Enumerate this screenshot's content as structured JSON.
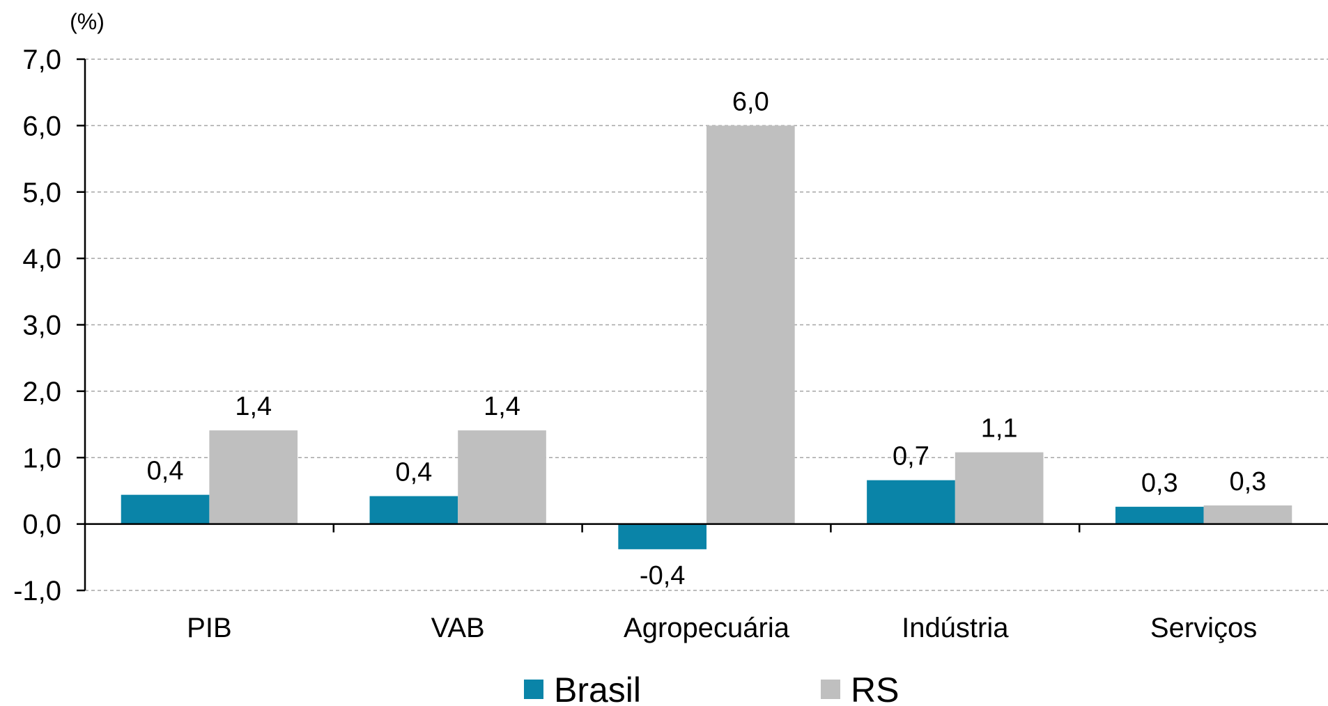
{
  "chart_data": {
    "type": "bar",
    "unit_label": "(%)",
    "categories": [
      "PIB",
      "VAB",
      "Agropecuária",
      "Indústria",
      "Serviços"
    ],
    "series": [
      {
        "name": "Brasil",
        "color": "#0a84a8",
        "values": [
          0.4,
          0.4,
          -0.4,
          0.7,
          0.3
        ],
        "labels": [
          "0,4",
          "0,4",
          "-0,4",
          "0,7",
          "0,3"
        ],
        "bar_heights": [
          0.44,
          0.42,
          -0.38,
          0.66,
          0.26
        ]
      },
      {
        "name": "RS",
        "color": "#bfbfbf",
        "values": [
          1.4,
          1.4,
          6.0,
          1.1,
          0.3
        ],
        "labels": [
          "1,4",
          "1,4",
          "6,0",
          "1,1",
          "0,3"
        ],
        "bar_heights": [
          1.41,
          1.41,
          6.0,
          1.08,
          0.28
        ]
      }
    ],
    "ylim": [
      -1.0,
      7.0
    ],
    "yticks": [
      -1.0,
      0.0,
      1.0,
      2.0,
      3.0,
      4.0,
      5.0,
      6.0,
      7.0
    ],
    "ytick_labels": [
      "-1,0",
      "0,0",
      "1,0",
      "2,0",
      "3,0",
      "4,0",
      "5,0",
      "6,0",
      "7,0"
    ],
    "grid": true,
    "legend_position": "bottom"
  }
}
